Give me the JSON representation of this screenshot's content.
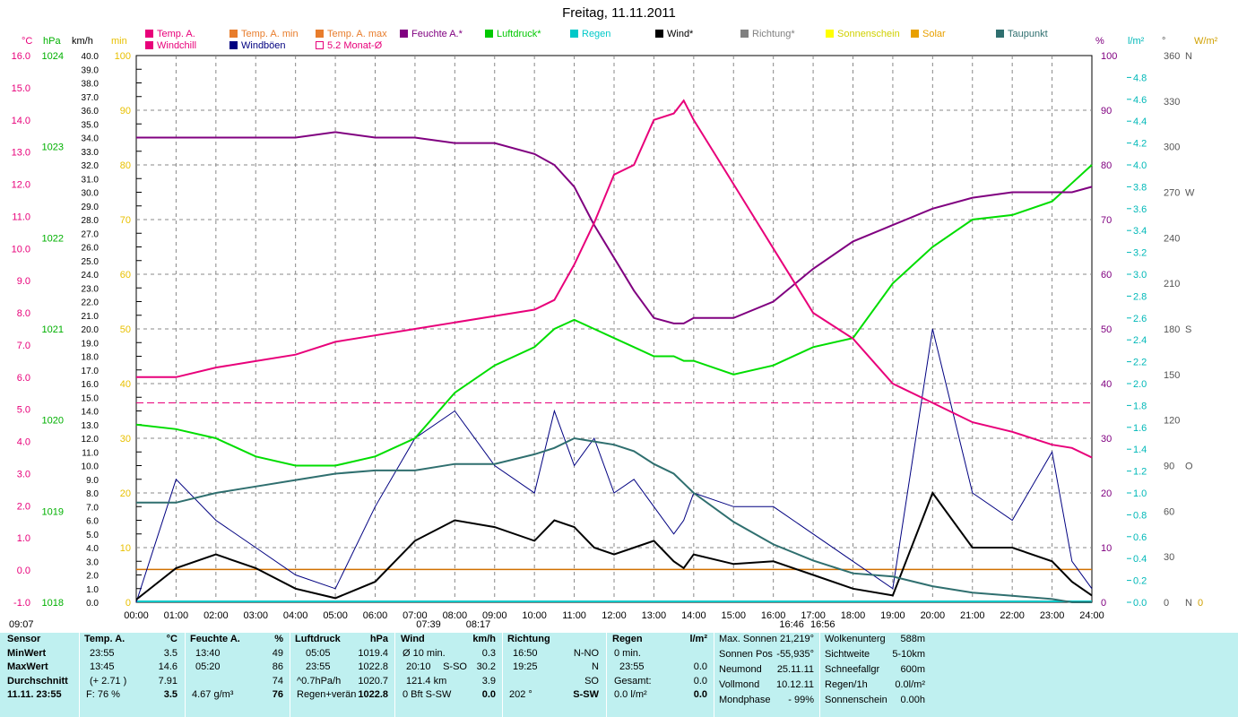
{
  "title": "Freitag, 11.11.2011",
  "legend": [
    {
      "label": "Temp. A.",
      "color": "#e8007a"
    },
    {
      "label": "Windchill",
      "color": "#e8007a"
    },
    {
      "label": "Temp. A. min",
      "color": "#e87d2c"
    },
    {
      "label": "Windböen",
      "color": "#000080"
    },
    {
      "label": "Temp. A. max",
      "color": "#e87d2c"
    },
    {
      "label": "5.2 Monat-Ø",
      "color": "#e8007a"
    },
    {
      "label": "Feuchte A.*",
      "color": "#800080"
    },
    {
      "label": "Luftdruck*",
      "color": "#00c800"
    },
    {
      "label": "Regen",
      "color": "#00c8c8"
    },
    {
      "label": "Wind*",
      "color": "#000000"
    },
    {
      "label": "Richtung*",
      "color": "#808080"
    },
    {
      "label": "Sonnenschein",
      "color": "#ffff00"
    },
    {
      "label": "Solar",
      "color": "#e8a000"
    },
    {
      "label": "Taupunkt",
      "color": "#2f6f6f"
    }
  ],
  "axes": {
    "temp": {
      "unit": "°C",
      "ticks": [
        "16.0",
        "15.0",
        "14.0",
        "13.0",
        "12.0",
        "11.0",
        "10.0",
        "9.0",
        "8.0",
        "7.0",
        "6.0",
        "5.0",
        "4.0",
        "3.0",
        "2.0",
        "1.0",
        "0.0",
        "-1.0"
      ]
    },
    "hpa": {
      "unit": "hPa",
      "ticks": [
        "1024",
        "1023",
        "1022",
        "1021",
        "1020",
        "1019",
        "1018"
      ]
    },
    "kmh": {
      "unit": "km/h",
      "ticks": [
        "40.0",
        "39.0",
        "38.0",
        "37.0",
        "36.0",
        "35.0",
        "34.0",
        "33.0",
        "32.0",
        "31.0",
        "30.0",
        "29.0",
        "28.0",
        "27.0",
        "26.0",
        "25.0",
        "24.0",
        "23.0",
        "22.0",
        "21.0",
        "20.0",
        "19.0",
        "18.0",
        "17.0",
        "16.0",
        "15.0",
        "14.0",
        "13.0",
        "12.0",
        "11.0",
        "10.0",
        "9.0",
        "8.0",
        "7.0",
        "6.0",
        "5.0",
        "4.0",
        "3.0",
        "2.0",
        "1.0",
        "0.0"
      ]
    },
    "min": {
      "unit": "min",
      "ticks": [
        "100",
        "90",
        "80",
        "70",
        "60",
        "50",
        "40",
        "30",
        "20",
        "10",
        "0"
      ]
    },
    "pct": {
      "unit": "%",
      "ticks": [
        "100",
        "90",
        "80",
        "70",
        "60",
        "50",
        "40",
        "30",
        "20",
        "10",
        "0"
      ]
    },
    "lm2": {
      "unit": "l/m²",
      "ticks": [
        "4.8",
        "4.6",
        "4.4",
        "4.2",
        "4.0",
        "3.8",
        "3.6",
        "3.4",
        "3.2",
        "3.0",
        "2.8",
        "2.6",
        "2.4",
        "2.2",
        "2.0",
        "1.8",
        "1.6",
        "1.4",
        "1.2",
        "1.0",
        "0.8",
        "0.6",
        "0.4",
        "0.2",
        "0.0"
      ]
    },
    "deg": {
      "unit": "°",
      "ticks": [
        "360",
        "330",
        "300",
        "270",
        "240",
        "210",
        "180",
        "150",
        "120",
        "90",
        "60",
        "30",
        "0"
      ],
      "compass": [
        "N",
        "",
        "",
        "W",
        "",
        "",
        "S",
        "",
        "",
        "O",
        "",
        "",
        "N"
      ]
    },
    "wm2": {
      "unit": "W/m²",
      "ticks": [
        "0"
      ]
    },
    "x": [
      "00:00",
      "01:00",
      "02:00",
      "03:00",
      "04:00",
      "05:00",
      "06:00",
      "07:00",
      "08:00",
      "09:00",
      "10:00",
      "11:00",
      "12:00",
      "13:00",
      "14:00",
      "15:00",
      "16:00",
      "17:00",
      "18:00",
      "19:00",
      "20:00",
      "21:00",
      "22:00",
      "23:00",
      "24:00"
    ]
  },
  "sun_marks": {
    "rise": "07:39",
    "transit": "08:17",
    "set1": "16:46",
    "set2": "16:56",
    "left": "09:07"
  },
  "chart_data": {
    "type": "line",
    "x_hours": [
      0,
      1,
      2,
      3,
      4,
      5,
      6,
      7,
      8,
      9,
      10,
      10.5,
      11,
      11.5,
      12,
      12.5,
      13,
      13.5,
      13.75,
      14,
      15,
      16,
      17,
      18,
      19,
      20,
      21,
      22,
      23,
      23.5,
      24
    ],
    "series": [
      {
        "name": "Temp. A.",
        "unit": "°C",
        "values": [
          6.0,
          6.0,
          6.3,
          6.5,
          6.7,
          7.1,
          7.3,
          7.5,
          7.7,
          7.9,
          8.1,
          8.4,
          9.5,
          10.8,
          12.3,
          12.6,
          14.0,
          14.2,
          14.6,
          14.0,
          12.0,
          10.0,
          8.0,
          7.2,
          5.8,
          5.2,
          4.6,
          4.3,
          3.9,
          3.8,
          3.5
        ]
      },
      {
        "name": "Feuchte A.*",
        "unit": "%",
        "values": [
          85,
          85,
          85,
          85,
          85,
          86,
          85,
          85,
          84,
          84,
          82,
          80,
          76,
          69,
          63,
          57,
          52,
          51,
          51,
          52,
          52,
          55,
          61,
          66,
          69,
          72,
          74,
          75,
          75,
          75,
          76
        ]
      },
      {
        "name": "Luftdruck*",
        "unit": "hPa",
        "values": [
          1019.95,
          1019.9,
          1019.8,
          1019.6,
          1019.5,
          1019.5,
          1019.6,
          1019.8,
          1020.3,
          1020.6,
          1020.8,
          1021.0,
          1021.1,
          1021.0,
          1020.9,
          1020.8,
          1020.7,
          1020.7,
          1020.65,
          1020.65,
          1020.5,
          1020.6,
          1020.8,
          1020.9,
          1021.5,
          1021.9,
          1022.2,
          1022.25,
          1022.4,
          1022.6,
          1022.8
        ]
      },
      {
        "name": "Taupunkt",
        "unit": "°C",
        "values": [
          2.1,
          2.1,
          2.4,
          2.6,
          2.8,
          3.0,
          3.1,
          3.1,
          3.3,
          3.3,
          3.6,
          3.8,
          4.1,
          4.0,
          3.9,
          3.7,
          3.3,
          3.0,
          2.7,
          2.4,
          1.5,
          0.8,
          0.3,
          -0.1,
          -0.2,
          -0.5,
          -0.7,
          -0.8,
          -0.9,
          -1.0,
          -1.0
        ]
      },
      {
        "name": "Wind*",
        "unit": "km/h",
        "values": [
          0.2,
          2.5,
          3.5,
          2.5,
          1.0,
          0.3,
          1.5,
          4.5,
          6.0,
          5.5,
          4.5,
          6.0,
          5.5,
          4.0,
          3.5,
          4.0,
          4.5,
          3.0,
          2.5,
          3.5,
          2.8,
          3.0,
          2.0,
          1.0,
          0.5,
          8.0,
          4.0,
          4.0,
          3.0,
          1.5,
          0.5
        ]
      },
      {
        "name": "Windböen",
        "unit": "km/h",
        "values": [
          0.0,
          9.0,
          6.0,
          4.0,
          2.0,
          1.0,
          7.0,
          12.0,
          14.0,
          10.0,
          8.0,
          14.0,
          10.0,
          12.0,
          8.0,
          9.0,
          7.0,
          5.0,
          6.0,
          8.0,
          7.0,
          7.0,
          5.0,
          3.0,
          1.0,
          20.0,
          8.0,
          6.0,
          11.0,
          3.0,
          1.0
        ]
      }
    ],
    "month_avg_temp": 5.2,
    "xlim": [
      0,
      24
    ],
    "temp_ylim": [
      -1,
      16
    ],
    "grid": true
  },
  "info": {
    "sensor": {
      "hdr": "Sensor",
      "rows": [
        "MinWert",
        "MaxWert",
        "Durchschnitt",
        "11.11. 23:55"
      ]
    },
    "temp": {
      "hdr": "Temp. A.",
      "unit": "°C",
      "rows": [
        [
          "23:55",
          "3.5"
        ],
        [
          "13:45",
          "14.6"
        ],
        [
          "(+ 2.71 )",
          "7.91"
        ],
        [
          "F: 76 %",
          "3.5"
        ]
      ]
    },
    "feuchte": {
      "hdr": "Feuchte A.",
      "unit": "%",
      "rows": [
        [
          "13:40",
          "49"
        ],
        [
          "05:20",
          "86"
        ],
        [
          "",
          "74"
        ],
        [
          "4.67 g/m³",
          "76"
        ]
      ]
    },
    "druck": {
      "hdr": "Luftdruck",
      "unit": "hPa",
      "rows": [
        [
          "05:05",
          "1019.4"
        ],
        [
          "23:55",
          "1022.8"
        ],
        [
          "^0.7hPa/h",
          "1020.7"
        ],
        [
          "Regen+verän",
          "1022.8"
        ]
      ]
    },
    "wind": {
      "hdr": "Wind",
      "unit": "km/h",
      "rows": [
        [
          "Ø 10 min.",
          "",
          "0.3"
        ],
        [
          "20:10",
          "S-SO",
          "30.2"
        ],
        [
          "121.4 km",
          "",
          "3.9"
        ],
        [
          "0 Bft S-SW",
          "",
          "0.0"
        ]
      ]
    },
    "richtung": {
      "hdr": "Richtung",
      "rows": [
        [
          "16:50",
          "N-NO"
        ],
        [
          "19:25",
          "N"
        ],
        [
          "",
          "SO"
        ],
        [
          "202 °",
          "S-SW"
        ]
      ]
    },
    "regen": {
      "hdr": "Regen",
      "unit": "l/m²",
      "rows": [
        [
          "0 min.",
          ""
        ],
        [
          "23:55",
          "0.0"
        ],
        [
          "Gesamt:",
          "0.0"
        ],
        [
          "0.0 l/m²",
          "0.0"
        ]
      ]
    },
    "astro": {
      "rows": [
        [
          "Max. Sonnen",
          "21,219°"
        ],
        [
          "Sonnen Pos",
          "-55,935°"
        ],
        [
          "Neumond",
          "25.11.11"
        ],
        [
          "Vollmond",
          "10.12.11"
        ],
        [
          "Mondphase",
          "- 99%"
        ]
      ]
    },
    "misc": {
      "rows": [
        [
          "Wolkenunterg",
          "588m"
        ],
        [
          "Sichtweite",
          "5-10km"
        ],
        [
          "Schneefallgr",
          "600m"
        ],
        [
          "Regen/1h",
          "0.0l/m²"
        ],
        [
          "Sonnenschein",
          "0.00h"
        ]
      ]
    }
  }
}
